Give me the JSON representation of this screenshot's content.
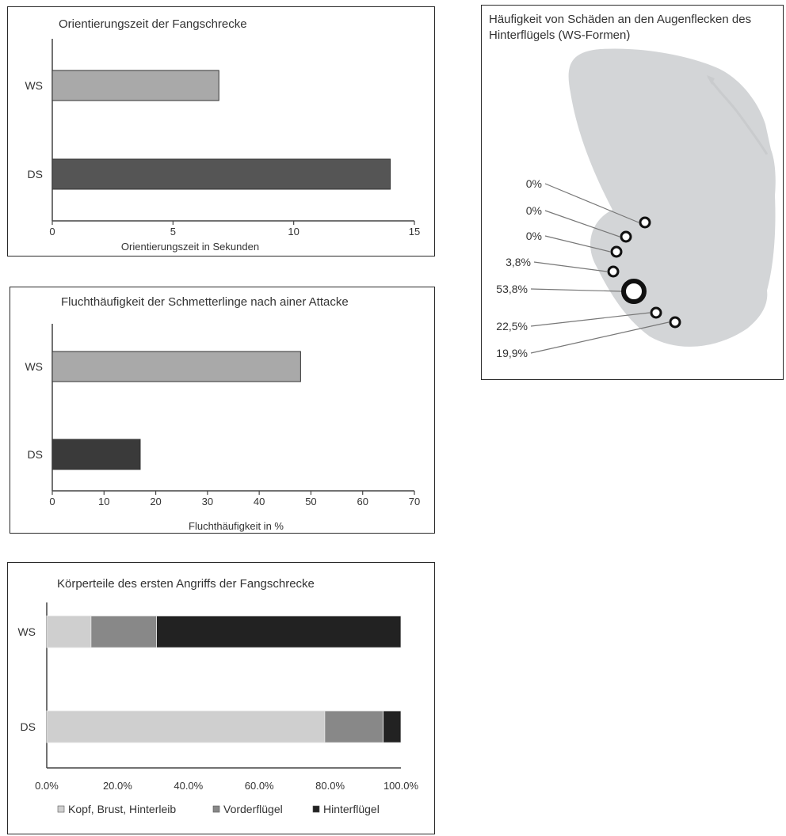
{
  "chart_data": [
    {
      "type": "bar",
      "orientation": "horizontal",
      "title": "Orientierungszeit der Fangschrecke",
      "xlabel": "Orientierungszeit in Sekunden",
      "categories": [
        "WS",
        "DS"
      ],
      "values": [
        6.9,
        14.0
      ],
      "colors": [
        "#a9a9a9",
        "#555555"
      ],
      "xlim": [
        0,
        15
      ],
      "xticks": [
        "0",
        "5",
        "10",
        "15"
      ],
      "xtick_values": [
        0,
        5,
        10,
        15
      ],
      "grid": false
    },
    {
      "type": "bar",
      "orientation": "horizontal",
      "title": "Fluchthäufigkeit der Schmetterlinge nach ainer  Attacke",
      "xlabel": "Fluchthäufigkeit in %",
      "categories": [
        "WS",
        "DS"
      ],
      "values": [
        48,
        17
      ],
      "colors": [
        "#a9a9a9",
        "#3a3a3a"
      ],
      "xlim": [
        0,
        70
      ],
      "xticks": [
        "0",
        "10",
        "20",
        "30",
        "40",
        "50",
        "60",
        "70"
      ],
      "xtick_values": [
        0,
        10,
        20,
        30,
        40,
        50,
        60,
        70
      ],
      "grid": false
    },
    {
      "type": "bar",
      "orientation": "horizontal",
      "stacked": true,
      "title": "Körperteile des ersten Angriffs der Fangschrecke",
      "categories": [
        "WS",
        "DS"
      ],
      "series": [
        {
          "name": "Kopf, Brust, Hinterleib",
          "values": [
            12.5,
            78.5
          ],
          "color": "#cfcfcf"
        },
        {
          "name": "Vorderflügel",
          "values": [
            18.5,
            16.5
          ],
          "color": "#888888"
        },
        {
          "name": "Hinterflügel",
          "values": [
            69.0,
            5.0
          ],
          "color": "#222222"
        }
      ],
      "xlim": [
        0,
        100
      ],
      "xticks": [
        "0.0%",
        "20.0%",
        "40.0%",
        "60.0%",
        "80.0%",
        "100.0%"
      ],
      "xtick_values": [
        0,
        20,
        40,
        60,
        80,
        100
      ],
      "legend": "bottom",
      "grid": false
    },
    {
      "type": "annotated-diagram",
      "title": "Häufigkeit von Schäden an den Augenflecken des Hinterflügels (WS-Formen)",
      "annotations": [
        "0%",
        "0%",
        "0%",
        "3,8%",
        "53,8%",
        "22,5%",
        "19,9%"
      ],
      "wing_color": "#d3d5d7"
    }
  ]
}
